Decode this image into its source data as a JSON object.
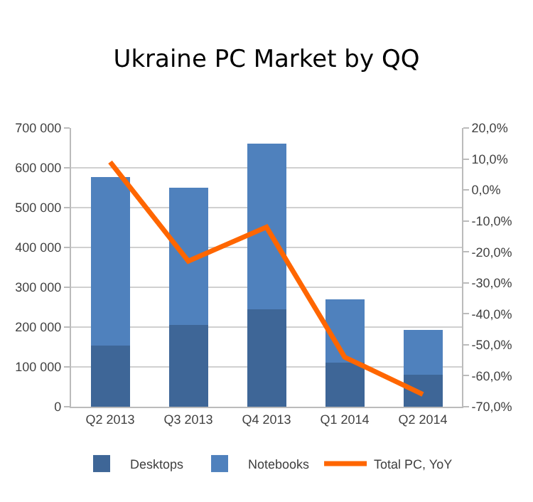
{
  "chart_data": {
    "type": "bar",
    "title": "Ukraine PC Market by QQ",
    "stacked": true,
    "categories": [
      "Q2 2013",
      "Q3 2013",
      "Q4 2013",
      "Q1 2014",
      "Q2 2014"
    ],
    "series": [
      {
        "name": "Desktops",
        "color": "#3e6697",
        "values": [
          153000,
          205000,
          245000,
          110000,
          80000
        ]
      },
      {
        "name": "Notebooks",
        "color": "#4f81bd",
        "values": [
          424000,
          345000,
          415000,
          160000,
          113000
        ]
      },
      {
        "name": "Total PC, YoY",
        "type": "line",
        "axis": "y2",
        "color": "#ff6600",
        "values": [
          9,
          -23,
          -12,
          -54,
          -66
        ]
      }
    ],
    "ylim": [
      0,
      700000
    ],
    "yticks": [
      {
        "value": 0,
        "label": "0"
      },
      {
        "value": 100000,
        "label": "100 000"
      },
      {
        "value": 200000,
        "label": "200 000"
      },
      {
        "value": 300000,
        "label": "300 000"
      },
      {
        "value": 400000,
        "label": "400 000"
      },
      {
        "value": 500000,
        "label": "500 000"
      },
      {
        "value": 600000,
        "label": "600 000"
      },
      {
        "value": 700000,
        "label": "700 000"
      }
    ],
    "y2lim": [
      -70,
      20
    ],
    "y2ticks": [
      {
        "value": -70,
        "label": "-70,0%"
      },
      {
        "value": -60,
        "label": "-60,0%"
      },
      {
        "value": -50,
        "label": "-50,0%"
      },
      {
        "value": -40,
        "label": "-40,0%"
      },
      {
        "value": -30,
        "label": "-30,0%"
      },
      {
        "value": -20,
        "label": "-20,0%"
      },
      {
        "value": -10,
        "label": "-10,0%"
      },
      {
        "value": 0,
        "label": "0,0%"
      },
      {
        "value": 10,
        "label": "10,0%"
      },
      {
        "value": 20,
        "label": "20,0%"
      }
    ],
    "grid": "y",
    "legend": "bottom",
    "marker": "none",
    "line_style": "solid"
  }
}
